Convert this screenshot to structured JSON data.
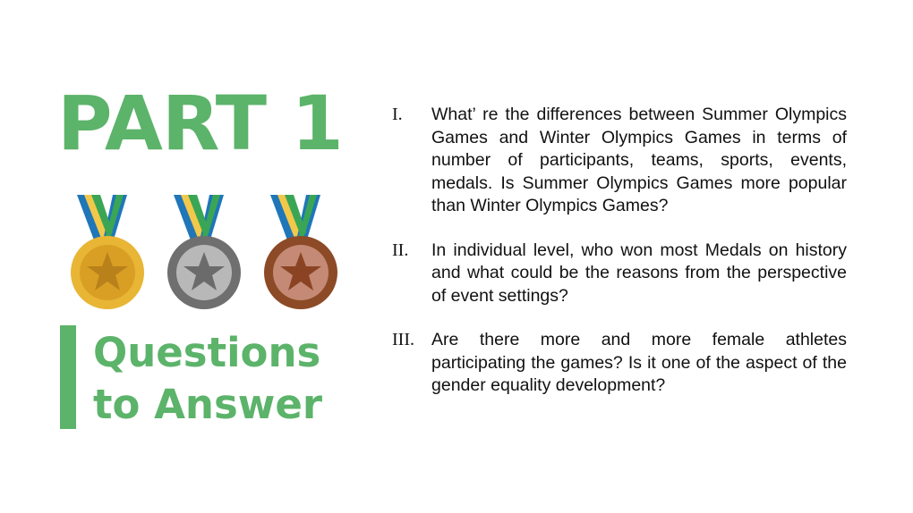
{
  "slide": {
    "title": "PART 1",
    "subtitle_line1": "Questions",
    "subtitle_line2": "to Answer",
    "accent_color": "#5cb36a",
    "medals": [
      {
        "name": "gold-medal-icon",
        "color": "#e8b535"
      },
      {
        "name": "silver-medal-icon",
        "color": "#a9a9a9"
      },
      {
        "name": "bronze-medal-icon",
        "color": "#b0664a"
      }
    ],
    "questions": [
      {
        "number": "I.",
        "text": "What’ re the differences between Summer Olympics Games and  Winter Olympics Games in terms of number of participants, teams, sports, events, medals. Is Summer Olympics Games more popular than Winter Olympics Games?"
      },
      {
        "number": "II.",
        "text": "In individual level, who won most Medals on history and what could be the reasons from the perspective of event settings?"
      },
      {
        "number": "III.",
        "text": "Are there more and more female athletes participating the games? Is it one of the aspect of the gender equality development?"
      }
    ]
  }
}
